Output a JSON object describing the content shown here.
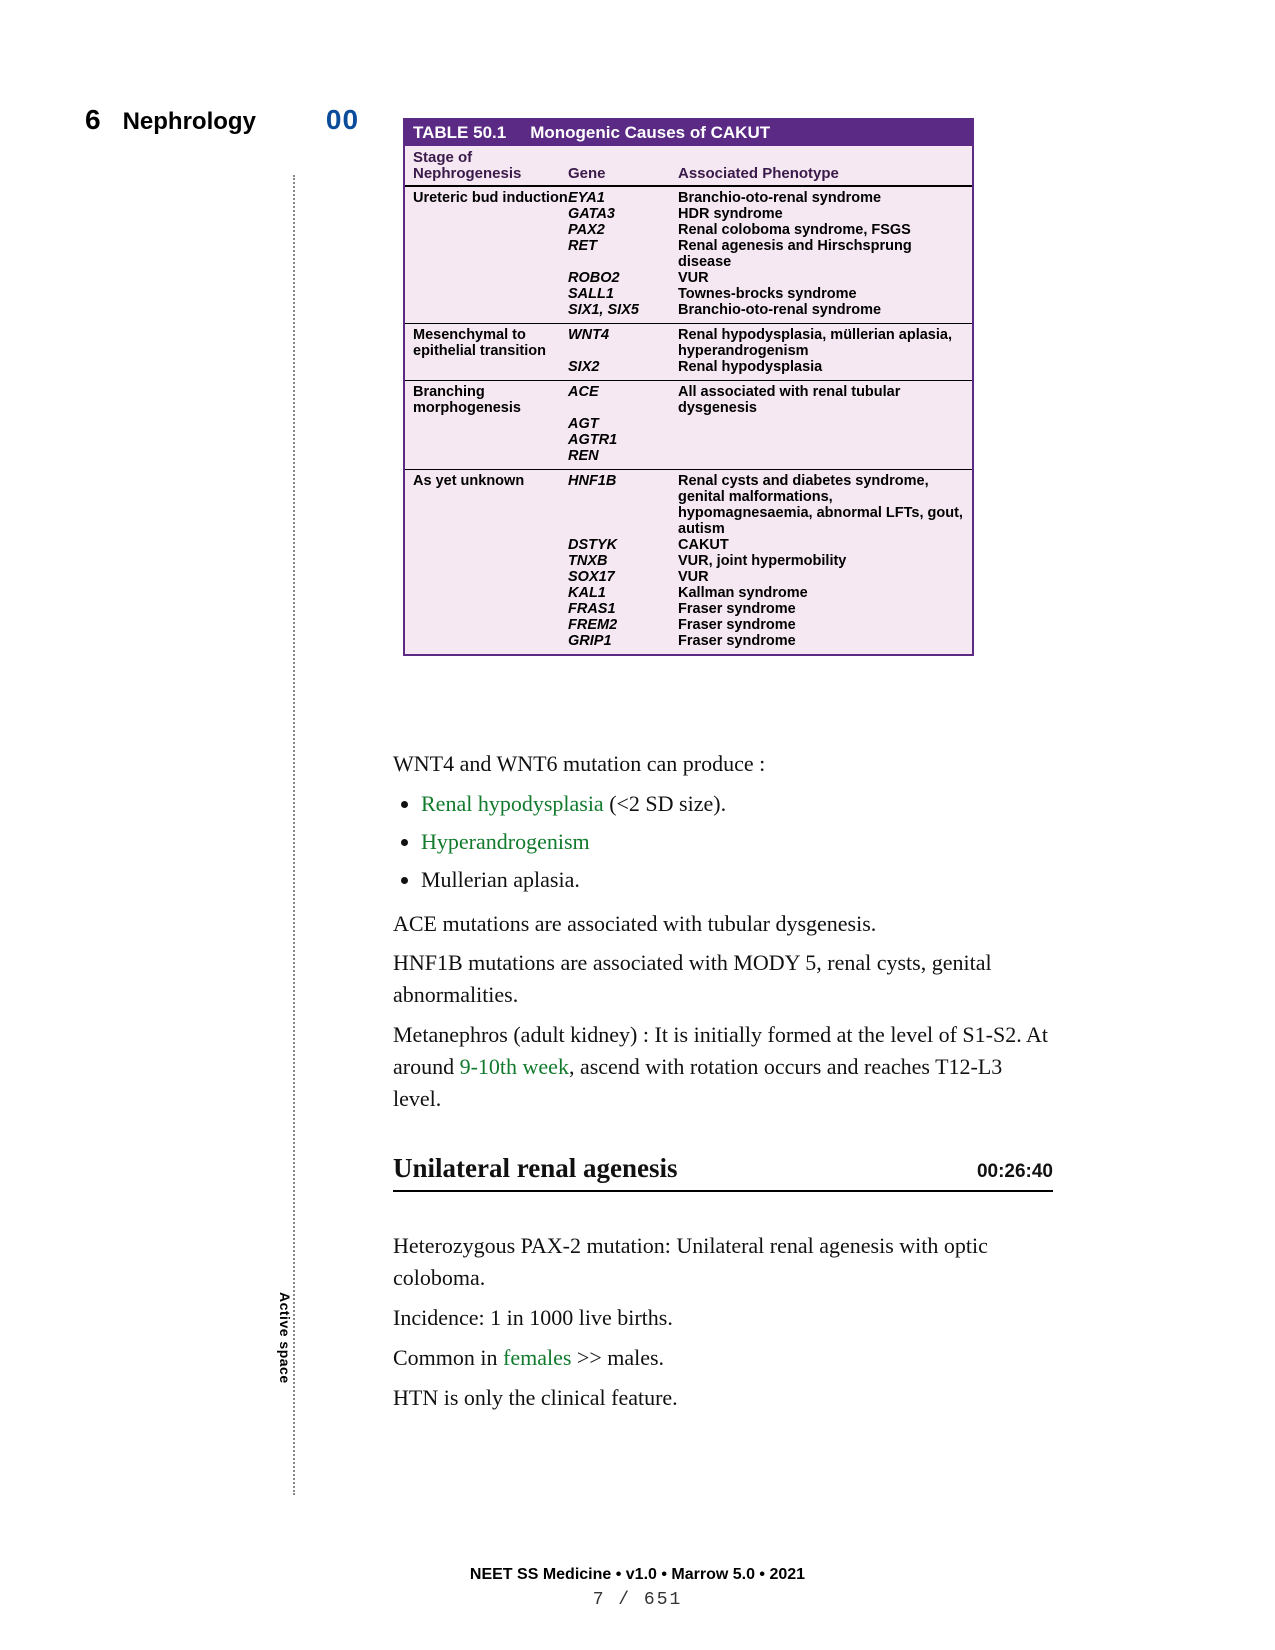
{
  "header": {
    "page_number": "6",
    "section": "Nephrology",
    "subnum": "00"
  },
  "active_space_label": "Active space",
  "table": {
    "title_left": "TABLE 50.1",
    "title_right": "Monogenic Causes of CAKUT",
    "head_c1_line1": "Stage of",
    "head_c1_line2": "Nephrogenesis",
    "head_c2": "Gene",
    "head_c3": "Associated Phenotype",
    "groups": [
      {
        "stage": "Ureteric bud induction",
        "rows": [
          {
            "g": "EYA1",
            "p": "Branchio-oto-renal syndrome"
          },
          {
            "g": "GATA3",
            "p": "HDR syndrome"
          },
          {
            "g": "PAX2",
            "p": "Renal coloboma syndrome, FSGS"
          },
          {
            "g": "RET",
            "p": "Renal agenesis and Hirschsprung disease"
          },
          {
            "g": "ROBO2",
            "p": "VUR"
          },
          {
            "g": "SALL1",
            "p": "Townes-brocks syndrome"
          },
          {
            "g": "SIX1, SIX5",
            "p": "Branchio-oto-renal syndrome"
          }
        ]
      },
      {
        "stage": "Mesenchymal to epithelial transition",
        "rows": [
          {
            "g": "WNT4",
            "p": "Renal hypodysplasia, müllerian aplasia, hyperandrogenism"
          },
          {
            "g": "SIX2",
            "p": "Renal hypodysplasia"
          }
        ]
      },
      {
        "stage": "Branching morphogenesis",
        "rows": [
          {
            "g": "ACE",
            "p": "All associated with renal tubular dysgenesis"
          },
          {
            "g": "AGT",
            "p": ""
          },
          {
            "g": "AGTR1",
            "p": ""
          },
          {
            "g": "REN",
            "p": ""
          }
        ]
      },
      {
        "stage": "As yet unknown",
        "rows": [
          {
            "g": "HNF1B",
            "p": "Renal cysts and diabetes syndrome, genital malformations, hypomagnesaemia, abnormal LFTs, gout, autism"
          },
          {
            "g": "DSTYK",
            "p": "CAKUT"
          },
          {
            "g": "TNXB",
            "p": "VUR, joint hypermobility"
          },
          {
            "g": "SOX17",
            "p": "VUR"
          },
          {
            "g": "KAL1",
            "p": "Kallman syndrome"
          },
          {
            "g": "FRAS1",
            "p": "Fraser syndrome"
          },
          {
            "g": "FREM2",
            "p": "Fraser syndrome"
          },
          {
            "g": "GRIP1",
            "p": "Fraser syndrome"
          }
        ]
      }
    ]
  },
  "notes": {
    "intro": "WNT4 and WNT6 mutation can produce :",
    "bullets": [
      {
        "green": "Renal hypodysplasia",
        "rest": " (<2 SD size)."
      },
      {
        "green": "Hyperandrogenism",
        "rest": ""
      },
      {
        "green": "",
        "rest": "Mullerian aplasia."
      }
    ],
    "p1": "ACE mutations are associated with tubular dysgenesis.",
    "p2": "HNF1B mutations are associated with MODY 5, renal cysts, genital abnormalities.",
    "p3a": "Metanephros (adult kidney) : It is initially formed at the level of S1-S2. At around ",
    "p3green": "9-10th week",
    "p3b": ", ascend with rotation occurs and reaches T12-L3 level.",
    "section_title": "Unilateral renal agenesis",
    "timestamp": "00:26:40",
    "p4": "Heterozygous PAX-2 mutation: Unilateral renal agenesis with optic coloboma.",
    "p5": "Incidence: 1 in 1000 live births.",
    "p6a": "Common in ",
    "p6green": "females",
    "p6b": " >> males.",
    "p7": "HTN is only the clinical feature."
  },
  "footer": {
    "line1": "NEET SS Medicine • v1.0 • Marrow 5.0 • 2021",
    "line2": "7 / 651"
  }
}
